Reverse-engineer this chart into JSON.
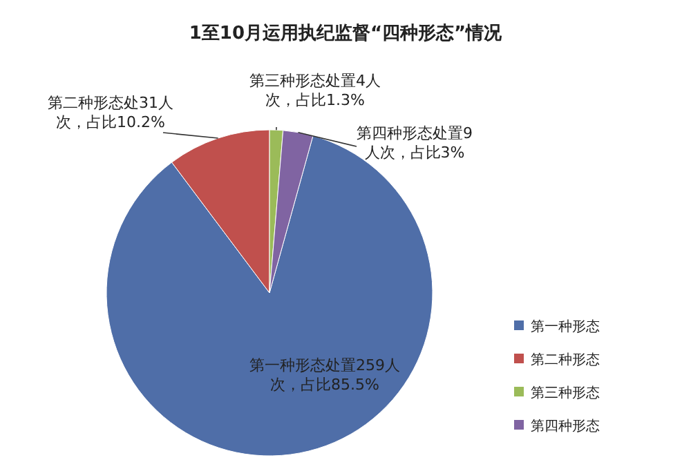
{
  "chart_data": {
    "type": "pie",
    "title": "1至10月运用执纪监督“四种形态”情况",
    "categories": [
      "第一种形态",
      "第二种形态",
      "第三种形态",
      "第四种形态"
    ],
    "values": [
      259,
      31,
      4,
      9
    ],
    "colors": [
      "#4f6ea8",
      "#c0504d",
      "#9bbb59",
      "#8064a2"
    ],
    "value_labels": [
      "第一种形态处置259人次，占比85.5%",
      "第二种形态处31人次，占比10.2%",
      "第三种形态处置4人次，占比1.3%",
      "第四种形态处置9人次，占比3%"
    ],
    "legend": "right"
  }
}
